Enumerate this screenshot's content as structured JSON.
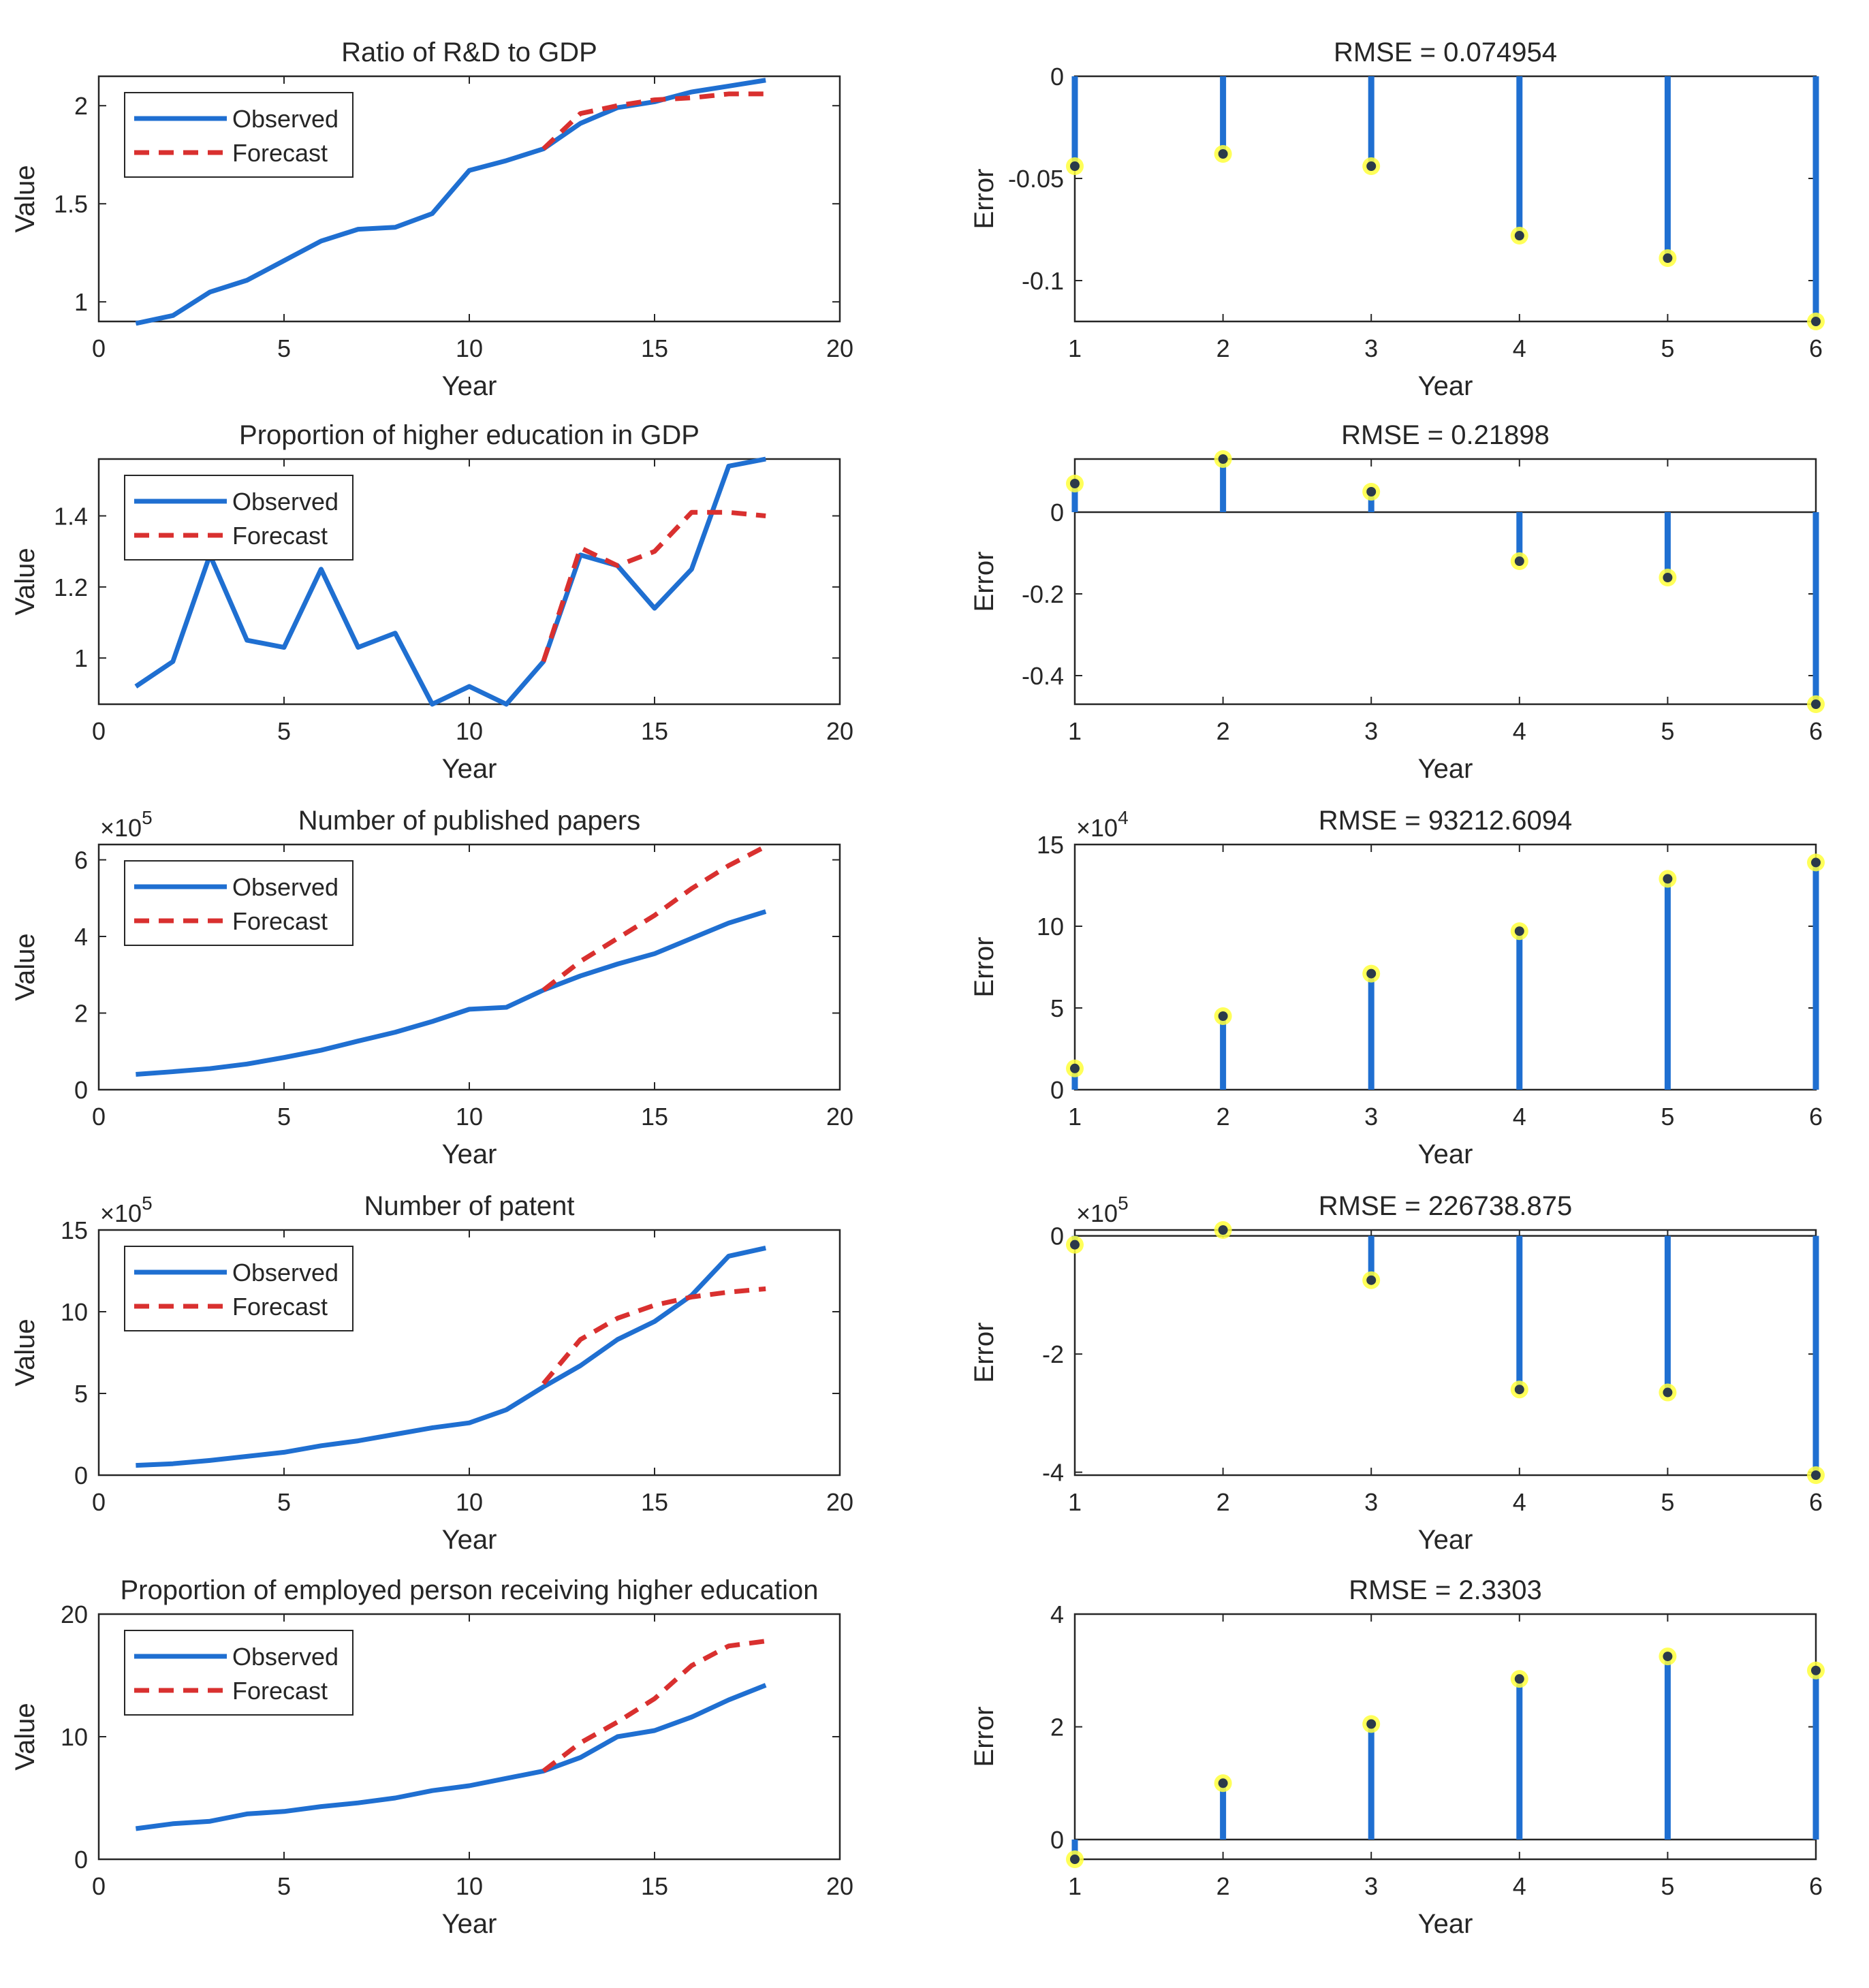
{
  "colors": {
    "observed": "#1f6fd1",
    "forecast": "#d9302f",
    "stem": "#1f6fd1",
    "marker_glow": "#ffff3c",
    "axis": "#262626"
  },
  "legend": {
    "observed": "Observed",
    "forecast": "Forecast"
  },
  "chart_data": [
    {
      "type": "line",
      "title": "Ratio of R&D to GDP",
      "xlabel": "Year",
      "ylabel": "Value",
      "xlim": [
        0,
        20
      ],
      "ylim": [
        0.9,
        2.15
      ],
      "xticks": [
        0,
        5,
        10,
        15,
        20
      ],
      "yticks": [
        1,
        1.5,
        2
      ],
      "ytick_labels": [
        "1",
        "1.5",
        "2"
      ],
      "exponent": "",
      "legend_loc": "top-left",
      "series": [
        {
          "name": "Observed",
          "x": [
            1,
            2,
            3,
            4,
            5,
            6,
            7,
            8,
            9,
            10,
            11,
            12,
            13,
            14,
            15,
            16,
            17,
            18
          ],
          "values": [
            0.89,
            0.93,
            1.05,
            1.11,
            1.21,
            1.31,
            1.37,
            1.38,
            1.45,
            1.67,
            1.72,
            1.78,
            1.91,
            1.99,
            2.02,
            2.07,
            2.1,
            2.13
          ]
        },
        {
          "name": "Forecast",
          "x": [
            12,
            13,
            14,
            15,
            16,
            17,
            18
          ],
          "values": [
            1.78,
            1.96,
            2.0,
            2.03,
            2.04,
            2.06,
            2.06
          ]
        }
      ]
    },
    {
      "type": "stem",
      "title": "RMSE = 0.074954",
      "xlabel": "Year",
      "ylabel": "Error",
      "xlim": [
        1,
        6
      ],
      "ylim": [
        -0.12,
        0
      ],
      "xticks": [
        1,
        2,
        3,
        4,
        5,
        6
      ],
      "yticks": [
        -0.1,
        -0.05,
        0
      ],
      "ytick_labels": [
        "-0.1",
        "-0.05",
        "0"
      ],
      "exponent": "",
      "baseline": 0,
      "x": [
        1,
        2,
        3,
        4,
        5,
        6
      ],
      "values": [
        -0.044,
        -0.038,
        -0.044,
        -0.078,
        -0.089,
        -0.12
      ]
    },
    {
      "type": "line",
      "title": "Proportion of higher education in GDP",
      "xlabel": "Year",
      "ylabel": "Value",
      "xlim": [
        0,
        20
      ],
      "ylim": [
        0.87,
        1.56
      ],
      "xticks": [
        0,
        5,
        10,
        15,
        20
      ],
      "yticks": [
        1,
        1.2,
        1.4
      ],
      "ytick_labels": [
        "1",
        "1.2",
        "1.4"
      ],
      "exponent": "",
      "legend_loc": "top-left",
      "series": [
        {
          "name": "Observed",
          "x": [
            1,
            2,
            3,
            4,
            5,
            6,
            7,
            8,
            9,
            10,
            11,
            12,
            13,
            14,
            15,
            16,
            17,
            18
          ],
          "values": [
            0.92,
            0.99,
            1.29,
            1.05,
            1.03,
            1.25,
            1.03,
            1.07,
            0.87,
            0.92,
            0.87,
            0.99,
            1.29,
            1.26,
            1.14,
            1.25,
            1.54,
            1.56
          ]
        },
        {
          "name": "Forecast",
          "x": [
            12,
            13,
            14,
            15,
            16,
            17,
            18
          ],
          "values": [
            0.99,
            1.31,
            1.26,
            1.3,
            1.41,
            1.41,
            1.4
          ]
        }
      ]
    },
    {
      "type": "stem",
      "title": "RMSE = 0.21898",
      "xlabel": "Year",
      "ylabel": "Error",
      "xlim": [
        1,
        6
      ],
      "ylim": [
        -0.47,
        0.13
      ],
      "xticks": [
        1,
        2,
        3,
        4,
        5,
        6
      ],
      "yticks": [
        -0.4,
        -0.2,
        0
      ],
      "ytick_labels": [
        "-0.4",
        "-0.2",
        "0"
      ],
      "exponent": "",
      "baseline": 0,
      "x": [
        1,
        2,
        3,
        4,
        5,
        6
      ],
      "values": [
        0.07,
        0.13,
        0.05,
        -0.12,
        -0.16,
        -0.47
      ]
    },
    {
      "type": "line",
      "title": "Number of published papers",
      "xlabel": "Year",
      "ylabel": "Value",
      "xlim": [
        0,
        20
      ],
      "ylim": [
        0,
        6.4
      ],
      "xticks": [
        0,
        5,
        10,
        15,
        20
      ],
      "yticks": [
        0,
        2,
        4,
        6
      ],
      "ytick_labels": [
        "0",
        "2",
        "4",
        "6"
      ],
      "exponent": "×10",
      "exponent_power": "5",
      "legend_loc": "top-left",
      "series": [
        {
          "name": "Observed",
          "x": [
            1,
            2,
            3,
            4,
            5,
            6,
            7,
            8,
            9,
            10,
            11,
            12,
            13,
            14,
            15,
            16,
            17,
            18
          ],
          "values": [
            0.4,
            0.47,
            0.55,
            0.67,
            0.84,
            1.03,
            1.27,
            1.5,
            1.78,
            2.1,
            2.15,
            2.6,
            2.97,
            3.28,
            3.55,
            3.95,
            4.35,
            4.65
          ]
        },
        {
          "name": "Forecast",
          "x": [
            12,
            13,
            14,
            15,
            16,
            17,
            18
          ],
          "values": [
            2.6,
            3.35,
            3.95,
            4.55,
            5.25,
            5.85,
            6.35
          ]
        }
      ]
    },
    {
      "type": "stem",
      "title": "RMSE = 93212.6094",
      "xlabel": "Year",
      "ylabel": "Error",
      "xlim": [
        1,
        6
      ],
      "ylim": [
        0,
        15
      ],
      "xticks": [
        1,
        2,
        3,
        4,
        5,
        6
      ],
      "yticks": [
        0,
        5,
        10,
        15
      ],
      "ytick_labels": [
        "0",
        "5",
        "10",
        "15"
      ],
      "exponent": "×10",
      "exponent_power": "4",
      "baseline": 0,
      "x": [
        1,
        2,
        3,
        4,
        5,
        6
      ],
      "values": [
        1.3,
        4.5,
        7.1,
        9.7,
        12.9,
        13.9
      ]
    },
    {
      "type": "line",
      "title": "Number of patent",
      "xlabel": "Year",
      "ylabel": "Value",
      "xlim": [
        0,
        20
      ],
      "ylim": [
        0,
        15
      ],
      "xticks": [
        0,
        5,
        10,
        15,
        20
      ],
      "yticks": [
        0,
        5,
        10,
        15
      ],
      "ytick_labels": [
        "0",
        "5",
        "10",
        "15"
      ],
      "exponent": "×10",
      "exponent_power": "5",
      "legend_loc": "top-left",
      "series": [
        {
          "name": "Observed",
          "x": [
            1,
            2,
            3,
            4,
            5,
            6,
            7,
            8,
            9,
            10,
            11,
            12,
            13,
            14,
            15,
            16,
            17,
            18
          ],
          "values": [
            0.6,
            0.7,
            0.9,
            1.15,
            1.4,
            1.8,
            2.1,
            2.5,
            2.9,
            3.2,
            4.0,
            5.4,
            6.7,
            8.3,
            9.4,
            11.0,
            13.4,
            13.9
          ]
        },
        {
          "name": "Forecast",
          "x": [
            12,
            13,
            14,
            15,
            16,
            17,
            18
          ],
          "values": [
            5.6,
            8.3,
            9.6,
            10.4,
            10.9,
            11.2,
            11.4
          ]
        }
      ]
    },
    {
      "type": "stem",
      "title": "RMSE = 226738.875",
      "xlabel": "Year",
      "ylabel": "Error",
      "xlim": [
        1,
        6
      ],
      "ylim": [
        -4.05,
        0.1
      ],
      "xticks": [
        1,
        2,
        3,
        4,
        5,
        6
      ],
      "yticks": [
        -4,
        -2,
        0
      ],
      "ytick_labels": [
        "-4",
        "-2",
        "0"
      ],
      "exponent": "×10",
      "exponent_power": "5",
      "baseline": 0,
      "x": [
        1,
        2,
        3,
        4,
        5,
        6
      ],
      "values": [
        -0.15,
        0.1,
        -0.75,
        -2.6,
        -2.65,
        -4.05
      ]
    },
    {
      "type": "line",
      "title": "Proportion of employed person receiving higher education",
      "xlabel": "Year",
      "ylabel": "Value",
      "xlim": [
        0,
        20
      ],
      "ylim": [
        0,
        20
      ],
      "xticks": [
        0,
        5,
        10,
        15,
        20
      ],
      "yticks": [
        0,
        10,
        20
      ],
      "ytick_labels": [
        "0",
        "10",
        "20"
      ],
      "exponent": "",
      "legend_loc": "top-left",
      "series": [
        {
          "name": "Observed",
          "x": [
            1,
            2,
            3,
            4,
            5,
            6,
            7,
            8,
            9,
            10,
            11,
            12,
            13,
            14,
            15,
            16,
            17,
            18
          ],
          "values": [
            2.5,
            2.9,
            3.1,
            3.7,
            3.9,
            4.3,
            4.6,
            5.0,
            5.6,
            6.0,
            6.6,
            7.2,
            8.3,
            10.0,
            10.5,
            11.6,
            13.0,
            14.2
          ]
        },
        {
          "name": "Forecast",
          "x": [
            12,
            13,
            14,
            15,
            16,
            17,
            18
          ],
          "values": [
            7.2,
            9.5,
            11.2,
            13.1,
            15.8,
            17.4,
            17.8
          ]
        }
      ]
    },
    {
      "type": "stem",
      "title": "RMSE = 2.3303",
      "xlabel": "Year",
      "ylabel": "Error",
      "xlim": [
        1,
        6
      ],
      "ylim": [
        -0.35,
        4
      ],
      "xticks": [
        1,
        2,
        3,
        4,
        5,
        6
      ],
      "yticks": [
        0,
        2,
        4
      ],
      "ytick_labels": [
        "0",
        "2",
        "4"
      ],
      "exponent": "",
      "baseline": 0,
      "x": [
        1,
        2,
        3,
        4,
        5,
        6
      ],
      "values": [
        -0.35,
        1.0,
        2.05,
        2.85,
        3.25,
        3.0
      ]
    }
  ]
}
